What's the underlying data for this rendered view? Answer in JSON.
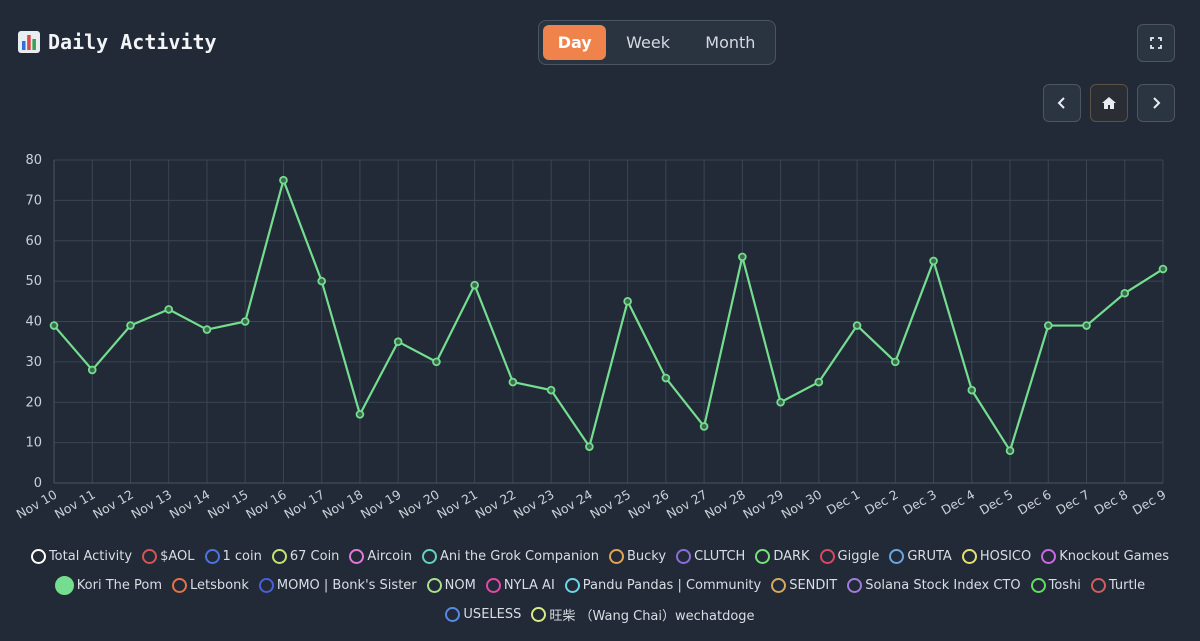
{
  "header": {
    "title": "Daily Activity",
    "title_icon": "bar-chart-icon",
    "tabs": [
      {
        "label": "Day",
        "active": true
      },
      {
        "label": "Week",
        "active": false
      },
      {
        "label": "Month",
        "active": false
      }
    ],
    "accent_color": "#f0824b"
  },
  "controls": {
    "fullscreen_icon": "fullscreen-icon",
    "prev_icon": "chevron-left-icon",
    "home_icon": "home-icon",
    "next_icon": "chevron-right-icon"
  },
  "chart_data": {
    "type": "line",
    "title": "",
    "xlabel": "",
    "ylabel": "",
    "ylim": [
      0,
      80
    ],
    "yticks": [
      0,
      10,
      20,
      30,
      40,
      50,
      60,
      70,
      80
    ],
    "grid": true,
    "legend_position": "bottom",
    "categories": [
      "Nov 10",
      "Nov 11",
      "Nov 12",
      "Nov 13",
      "Nov 14",
      "Nov 15",
      "Nov 16",
      "Nov 17",
      "Nov 18",
      "Nov 19",
      "Nov 20",
      "Nov 21",
      "Nov 22",
      "Nov 23",
      "Nov 24",
      "Nov 25",
      "Nov 26",
      "Nov 27",
      "Nov 28",
      "Nov 29",
      "Nov 30",
      "Dec 1",
      "Dec 2",
      "Dec 3",
      "Dec 4",
      "Dec 5",
      "Dec 6",
      "Dec 7",
      "Dec 8",
      "Dec 9"
    ],
    "series": [
      {
        "name": "Kori The Pom",
        "color": "#74dd8f",
        "values": [
          39,
          28,
          39,
          43,
          38,
          40,
          75,
          50,
          17,
          35,
          30,
          49,
          25,
          23,
          9,
          45,
          26,
          14,
          56,
          20,
          25,
          39,
          30,
          55,
          23,
          8,
          39,
          39,
          47,
          53
        ]
      }
    ]
  },
  "legend": {
    "rows": [
      [
        {
          "label": "Total Activity",
          "color": "#ffffff",
          "filled": false
        },
        {
          "label": "$AOL",
          "color": "#d9534f",
          "filled": false
        },
        {
          "label": "1 coin",
          "color": "#4f74d9",
          "filled": false
        },
        {
          "label": "67 Coin",
          "color": "#c7e36a",
          "filled": false
        },
        {
          "label": "Aircoin",
          "color": "#e07ad9",
          "filled": false
        },
        {
          "label": "Ani the Grok Companion",
          "color": "#5fd4c3",
          "filled": false
        },
        {
          "label": "Bucky",
          "color": "#e0a35a",
          "filled": false
        },
        {
          "label": "CLUTCH",
          "color": "#8d6be0",
          "filled": false
        },
        {
          "label": "DARK",
          "color": "#79e07c",
          "filled": false
        },
        {
          "label": "Giggle",
          "color": "#e0445e",
          "filled": false
        },
        {
          "label": "GRUTA",
          "color": "#6aa6e0",
          "filled": false
        },
        {
          "label": "HOSICO",
          "color": "#e8e06a",
          "filled": false
        },
        {
          "label": "Knockout Games",
          "color": "#c96ae0",
          "filled": false
        }
      ],
      [
        {
          "label": "Kori The Pom",
          "color": "#74dd8f",
          "filled": true
        },
        {
          "label": "Letsbonk",
          "color": "#e0734a",
          "filled": false
        },
        {
          "label": "MOMO | Bonk's Sister",
          "color": "#4a5ee0",
          "filled": false
        },
        {
          "label": "NOM",
          "color": "#a8e08a",
          "filled": false
        },
        {
          "label": "NYLA AI",
          "color": "#e04aa8",
          "filled": false
        },
        {
          "label": "Pandu Pandas | Community",
          "color": "#6ad7e8",
          "filled": false
        },
        {
          "label": "SENDIT",
          "color": "#d9a85a",
          "filled": false
        },
        {
          "label": "Solana Stock Index CTO",
          "color": "#a07ae0",
          "filled": false
        },
        {
          "label": "Toshi",
          "color": "#5ee05a",
          "filled": false
        },
        {
          "label": "Turtle",
          "color": "#d95a5a",
          "filled": false
        }
      ],
      [
        {
          "label": "USELESS",
          "color": "#5a8ae0",
          "filled": false
        },
        {
          "label": "旺柴 （Wang Chai）wechatdoge",
          "color": "#d9e88a",
          "filled": false
        }
      ]
    ]
  }
}
